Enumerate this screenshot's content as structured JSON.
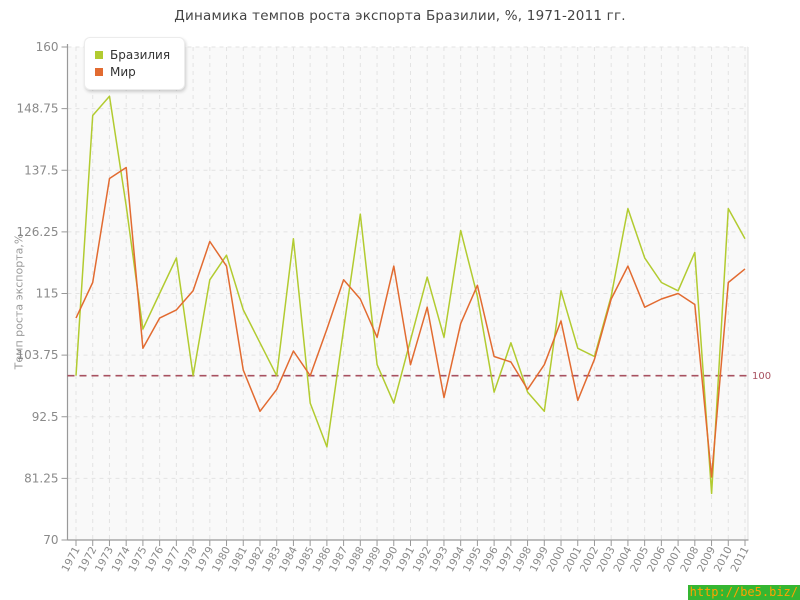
{
  "title": "Динамика темпов роста экспорта Бразилии, %, 1971-2011 гг.",
  "watermark": {
    "text": "http://be5.biz/",
    "bg_color": "#35b631",
    "text_color": "#ffa200"
  },
  "colors": {
    "brazil_line": "#b2cb30",
    "world_line": "#e26b31",
    "reference_line": "#a85160",
    "grid": "#e3e3e3",
    "axis": "#999999",
    "tick_text": "#8a8a8a",
    "plot_bg": "#f9f9f9"
  },
  "chart_data": {
    "type": "line",
    "title": "Динамика темпов роста экспорта Бразилии, %, 1971-2011 гг.",
    "xlabel": "",
    "ylabel": "Темп роста экспорта,%",
    "ylim": [
      70,
      160
    ],
    "yticks": [
      70,
      81.25,
      92.5,
      103.75,
      115,
      126.25,
      137.5,
      148.75,
      160
    ],
    "grid": true,
    "legend_position": "top-left",
    "x": [
      1971,
      1972,
      1973,
      1974,
      1975,
      1976,
      1977,
      1978,
      1979,
      1980,
      1981,
      1982,
      1983,
      1984,
      1985,
      1986,
      1987,
      1988,
      1989,
      1990,
      1991,
      1992,
      1993,
      1994,
      1995,
      1996,
      1997,
      1998,
      1999,
      2000,
      2001,
      2002,
      2003,
      2004,
      2005,
      2006,
      2007,
      2008,
      2009,
      2010,
      2011
    ],
    "series": [
      {
        "name": "Бразилия",
        "color": "#b2cb30",
        "values": [
          100,
          147.5,
          151,
          131,
          108.5,
          115,
          121.5,
          100,
          117.5,
          122,
          112,
          106,
          100,
          125,
          95,
          87,
          108.5,
          129.5,
          102,
          95,
          106.5,
          118,
          107,
          126.5,
          114.5,
          97,
          106,
          97,
          93.5,
          115.5,
          105,
          103.5,
          114.5,
          130.5,
          121.5,
          117,
          115.5,
          122.5,
          78.5,
          130.5,
          125
        ]
      },
      {
        "name": "Мир",
        "color": "#e26b31",
        "values": [
          110.5,
          117,
          136,
          138,
          105,
          110.5,
          112,
          115.5,
          124.5,
          120,
          101,
          93.5,
          97.5,
          104.5,
          100,
          108.5,
          117.5,
          114,
          107,
          120,
          102,
          112.5,
          96,
          109.5,
          116.5,
          103.5,
          102.5,
          97.5,
          102,
          110,
          95.5,
          103,
          114,
          120,
          112.5,
          114,
          115,
          113,
          81.5,
          117,
          119.5
        ]
      }
    ],
    "reference_line": {
      "value": 100,
      "label": "100",
      "color": "#a85160"
    }
  }
}
